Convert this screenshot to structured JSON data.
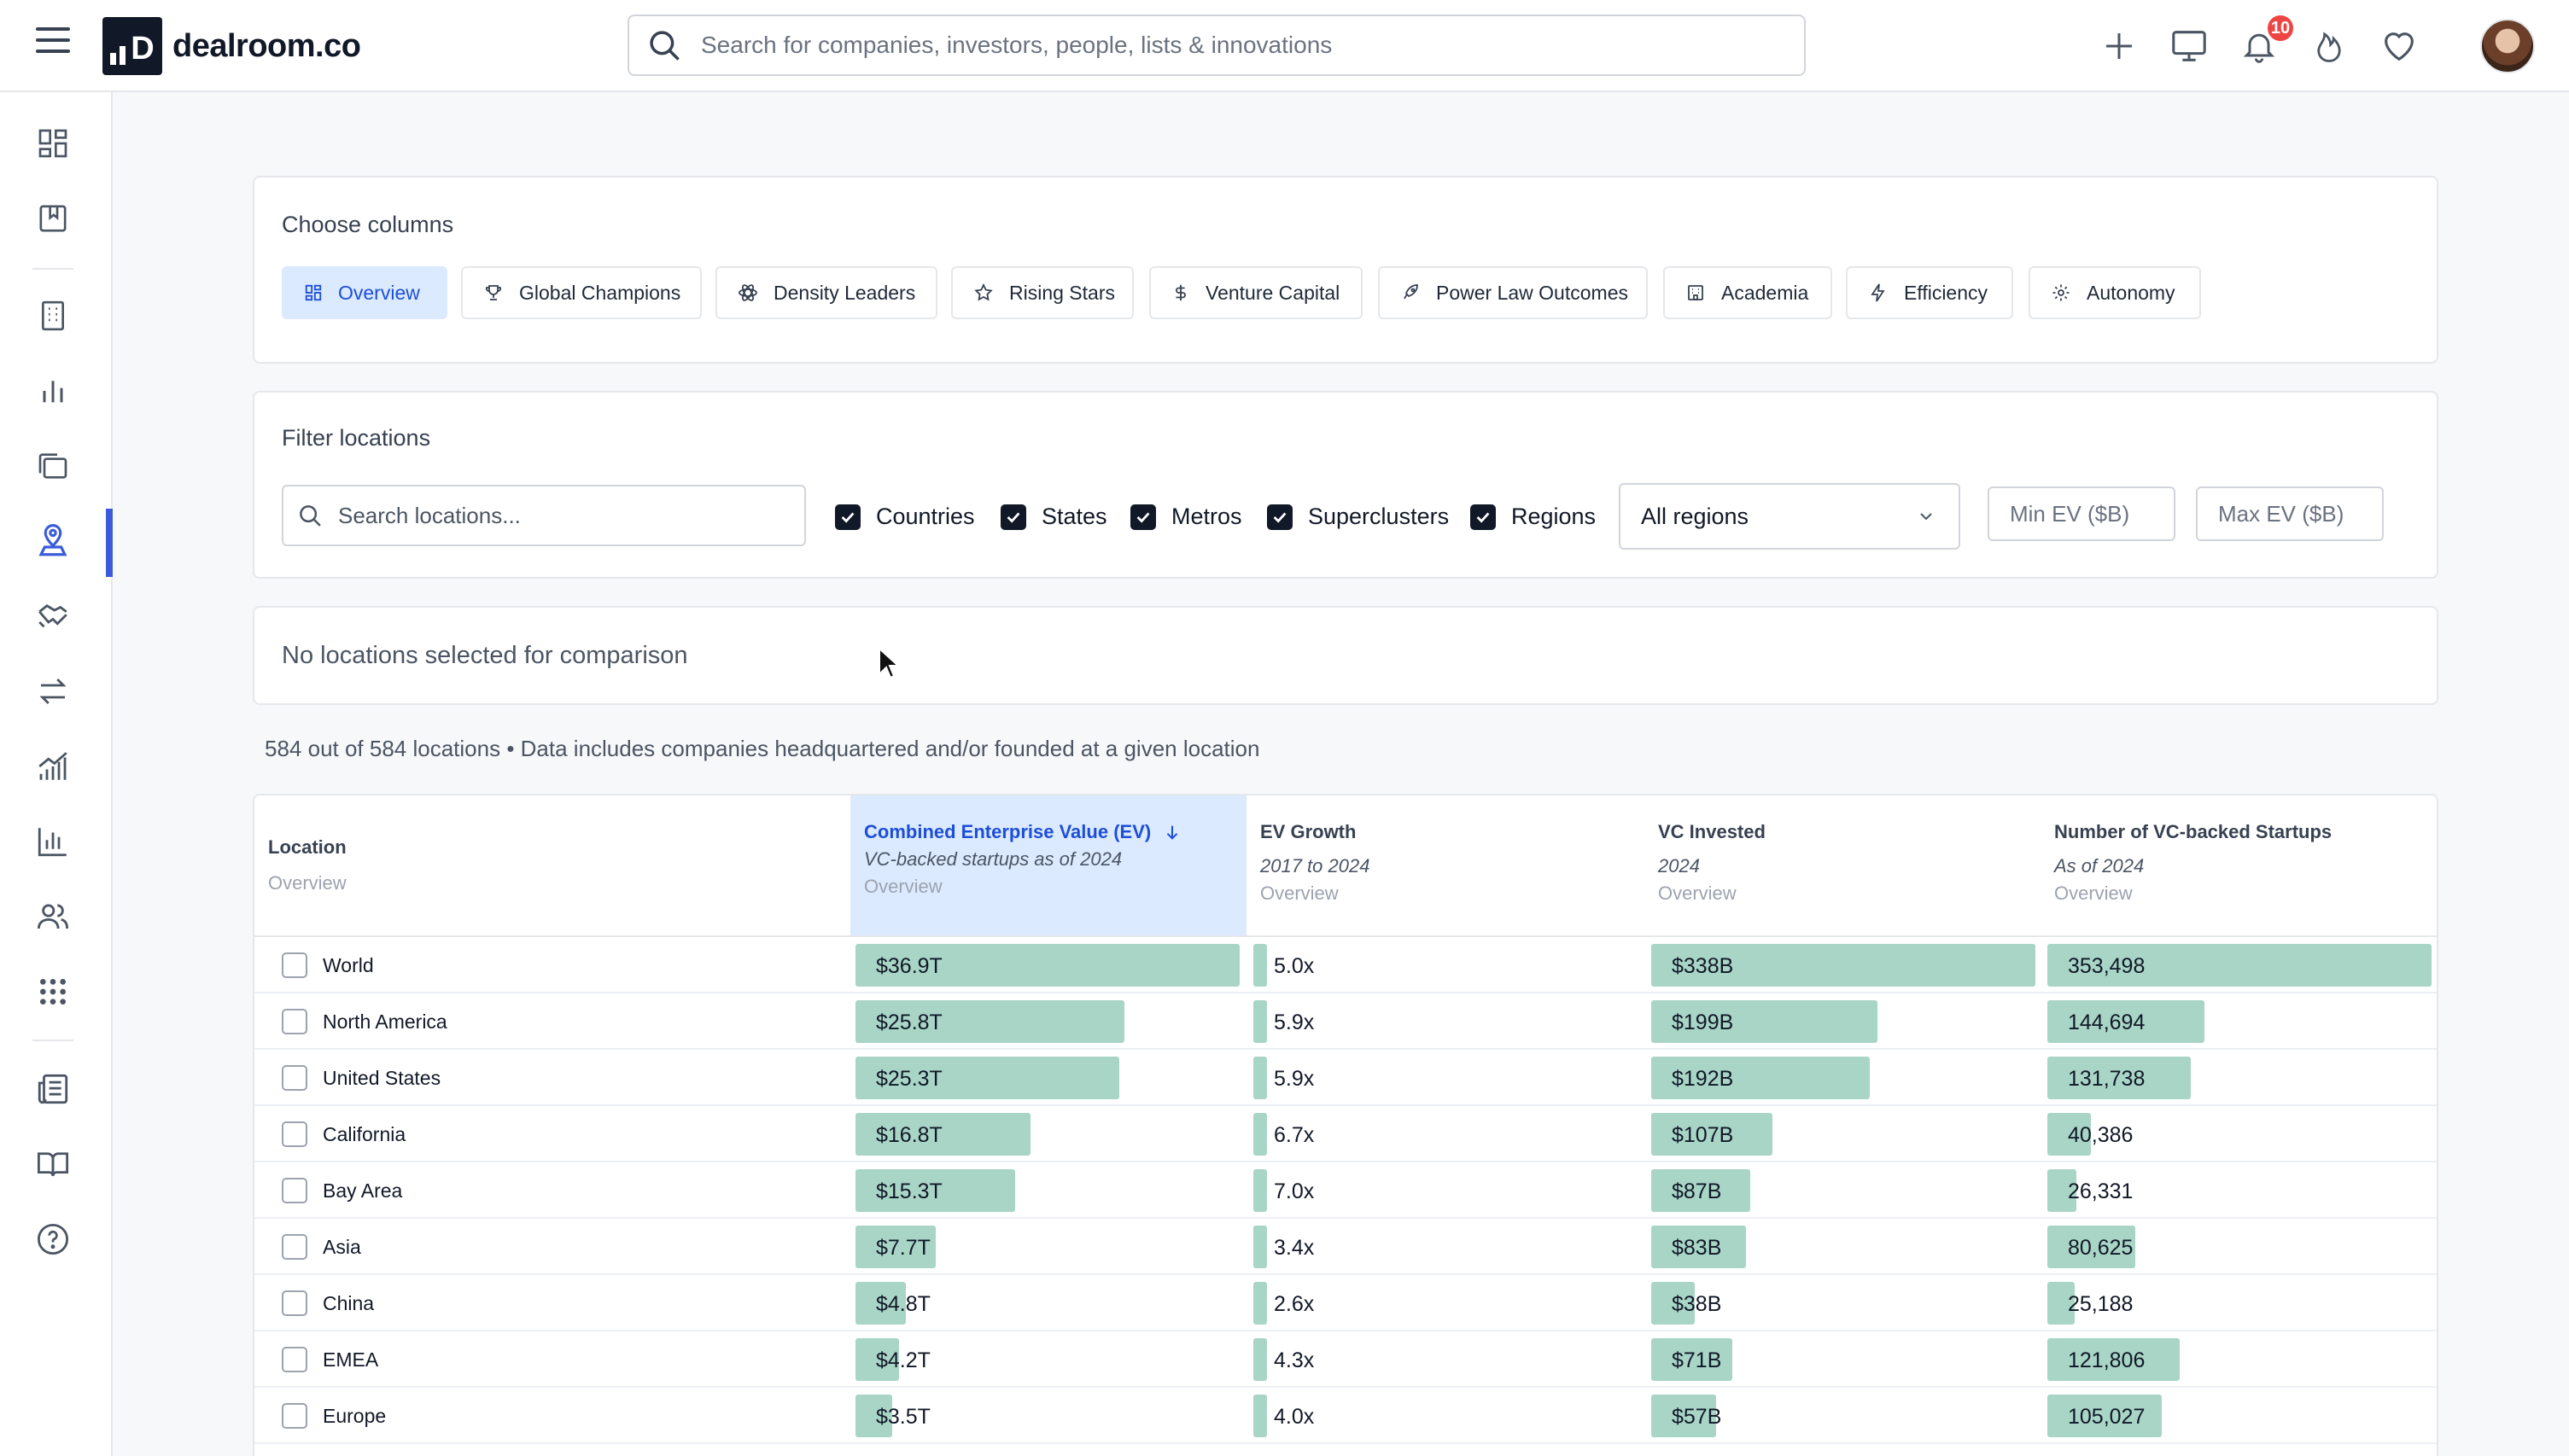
{
  "app": {
    "logo_text": "dealroom.co",
    "search_placeholder": "Search for companies, investors, people, lists & innovations",
    "notification_count": "10"
  },
  "choose_columns": {
    "title": "Choose columns",
    "options": [
      {
        "label": "Overview",
        "icon": "grid-icon",
        "active": true
      },
      {
        "label": "Global Champions",
        "icon": "trophy-icon"
      },
      {
        "label": "Density Leaders",
        "icon": "atom-icon"
      },
      {
        "label": "Rising Stars",
        "icon": "star-icon"
      },
      {
        "label": "Venture Capital",
        "icon": "dollar-icon"
      },
      {
        "label": "Power Law Outcomes",
        "icon": "rocket-icon"
      },
      {
        "label": "Academia",
        "icon": "building-icon"
      },
      {
        "label": "Efficiency",
        "icon": "bolt-icon"
      },
      {
        "label": "Autonomy",
        "icon": "gear-icon"
      }
    ]
  },
  "filter_locations": {
    "title": "Filter locations",
    "search_placeholder": "Search locations...",
    "checkboxes": [
      {
        "label": "Countries",
        "checked": true
      },
      {
        "label": "States",
        "checked": true
      },
      {
        "label": "Metros",
        "checked": true
      },
      {
        "label": "Superclusters",
        "checked": true
      },
      {
        "label": "Regions",
        "checked": true
      }
    ],
    "region_select": "All regions",
    "min_ev_placeholder": "Min EV ($B)",
    "max_ev_placeholder": "Max EV ($B)"
  },
  "comparison": {
    "message": "No locations selected for comparison"
  },
  "summary": "584 out of 584 locations • Data includes companies headquartered and/or founded at a given location",
  "table": {
    "columns": [
      {
        "title": "Location",
        "subtitle": "",
        "group": "Overview"
      },
      {
        "title": "Combined Enterprise Value (EV)",
        "subtitle": "VC-backed startups as of 2024",
        "group": "Overview",
        "sorted": "desc"
      },
      {
        "title": "EV Growth",
        "subtitle": "2017 to 2024",
        "group": "Overview"
      },
      {
        "title": "VC Invested",
        "subtitle": "2024",
        "group": "Overview"
      },
      {
        "title": "Number of VC-backed Startups",
        "subtitle": "As of 2024",
        "group": "Overview"
      }
    ],
    "rows": [
      {
        "name": "World",
        "ev": "$36.9T",
        "ev_n": 36.9,
        "growth": "5.0x",
        "vc": "$338B",
        "vc_n": 338,
        "startups": "353,498",
        "startups_n": 353498
      },
      {
        "name": "North America",
        "ev": "$25.8T",
        "ev_n": 25.8,
        "growth": "5.9x",
        "vc": "$199B",
        "vc_n": 199,
        "startups": "144,694",
        "startups_n": 144694
      },
      {
        "name": "United States",
        "ev": "$25.3T",
        "ev_n": 25.3,
        "growth": "5.9x",
        "vc": "$192B",
        "vc_n": 192,
        "startups": "131,738",
        "startups_n": 131738
      },
      {
        "name": "California",
        "ev": "$16.8T",
        "ev_n": 16.8,
        "growth": "6.7x",
        "vc": "$107B",
        "vc_n": 107,
        "startups": "40,386",
        "startups_n": 40386
      },
      {
        "name": "Bay Area",
        "ev": "$15.3T",
        "ev_n": 15.3,
        "growth": "7.0x",
        "vc": "$87B",
        "vc_n": 87,
        "startups": "26,331",
        "startups_n": 26331
      },
      {
        "name": "Asia",
        "ev": "$7.7T",
        "ev_n": 7.7,
        "growth": "3.4x",
        "vc": "$83B",
        "vc_n": 83,
        "startups": "80,625",
        "startups_n": 80625
      },
      {
        "name": "China",
        "ev": "$4.8T",
        "ev_n": 4.8,
        "growth": "2.6x",
        "vc": "$38B",
        "vc_n": 38,
        "startups": "25,188",
        "startups_n": 25188
      },
      {
        "name": "EMEA",
        "ev": "$4.2T",
        "ev_n": 4.2,
        "growth": "4.3x",
        "vc": "$71B",
        "vc_n": 71,
        "startups": "121,806",
        "startups_n": 121806
      },
      {
        "name": "Europe",
        "ev": "$3.5T",
        "ev_n": 3.5,
        "growth": "4.0x",
        "vc": "$57B",
        "vc_n": 57,
        "startups": "105,027",
        "startups_n": 105027
      }
    ]
  },
  "colors": {
    "bar": "#a8d5c6",
    "accent": "#1d4ed8",
    "sorted_header_bg": "#dbeafe",
    "sidebar_active": "#3b5bdb"
  }
}
